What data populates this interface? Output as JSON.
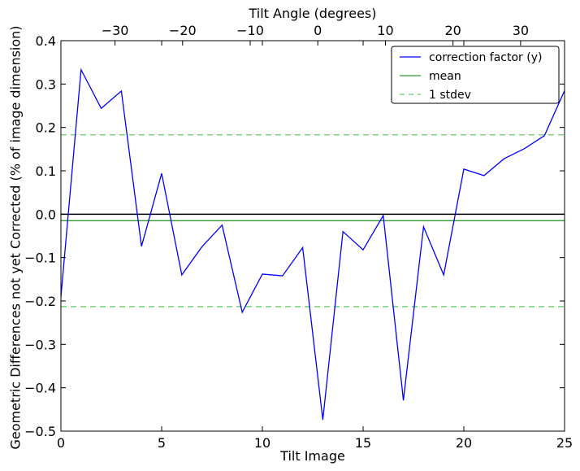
{
  "chart_data": {
    "type": "line",
    "xlabel": "Tilt Image",
    "ylabel": "Geometric Differences not yet Corrected (% of image dimension)",
    "top_xlabel": "Tilt Angle (degrees)",
    "xlim": [
      0,
      25
    ],
    "ylim": [
      -0.5,
      0.4
    ],
    "top_xlim": [
      -38.0,
      36.5
    ],
    "x_ticks": [
      0,
      5,
      10,
      15,
      20,
      25
    ],
    "x_tick_labels": [
      "0",
      "5",
      "10",
      "15",
      "20",
      "25"
    ],
    "y_ticks": [
      -0.5,
      -0.4,
      -0.3,
      -0.2,
      -0.1,
      0.0,
      0.1,
      0.2,
      0.3,
      0.4
    ],
    "y_tick_labels": [
      "−0.5",
      "−0.4",
      "−0.3",
      "−0.2",
      "−0.1",
      "0.0",
      "0.1",
      "0.2",
      "0.3",
      "0.4"
    ],
    "top_x_ticks": [
      -30,
      -20,
      -10,
      0,
      10,
      20,
      30
    ],
    "top_x_tick_labels": [
      "−30",
      "−20",
      "−10",
      "0",
      "10",
      "20",
      "30"
    ],
    "grid": false,
    "legend_position": "top-right",
    "series": [
      {
        "name": "correction factor (y)",
        "color": "#0000ff",
        "style": "solid",
        "x": [
          0,
          1,
          2,
          3,
          4,
          5,
          6,
          7,
          8,
          9,
          10,
          11,
          12,
          13,
          14,
          15,
          16,
          17,
          18,
          19,
          20,
          21,
          22,
          23,
          24,
          25
        ],
        "y": [
          -0.19,
          0.333,
          0.244,
          0.284,
          -0.074,
          0.094,
          -0.14,
          -0.075,
          -0.025,
          -0.226,
          -0.138,
          -0.142,
          -0.077,
          -0.474,
          -0.04,
          -0.082,
          -0.003,
          -0.429,
          -0.029,
          -0.14,
          0.104,
          0.089,
          0.128,
          0.151,
          0.181,
          0.285
        ]
      },
      {
        "name": "mean",
        "color": "#339933",
        "style": "solid",
        "y_constant": -0.015
      },
      {
        "name": "1 stdev",
        "color": "#66cc66",
        "style": "dashed",
        "y_constants": [
          0.183,
          -0.213
        ]
      }
    ],
    "reference_line": {
      "y": 0.0,
      "color": "#000000"
    }
  }
}
